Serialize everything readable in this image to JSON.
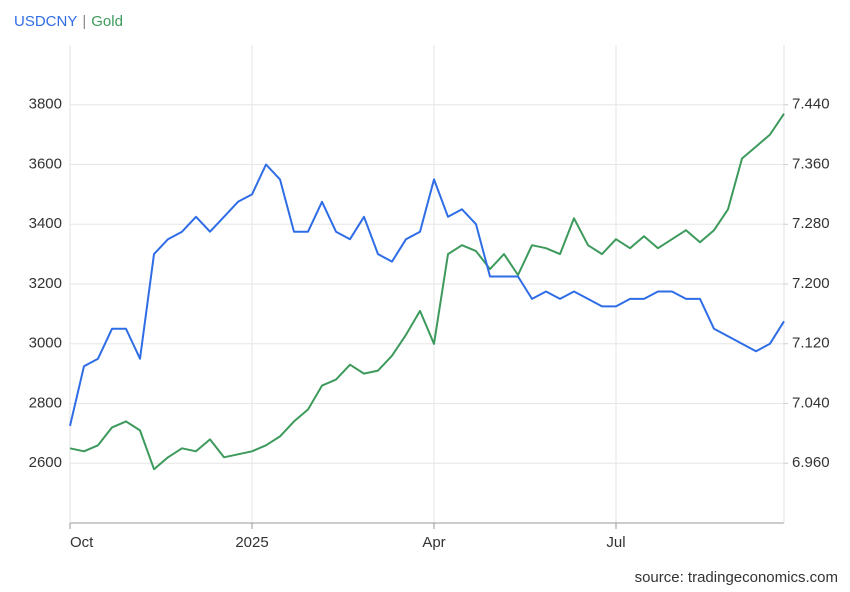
{
  "chart_data": {
    "type": "line",
    "categories": [
      "Oct",
      null,
      null,
      null,
      null,
      null,
      null,
      null,
      null,
      null,
      null,
      null,
      null,
      "2025",
      null,
      null,
      null,
      null,
      null,
      null,
      null,
      null,
      null,
      null,
      null,
      null,
      "Apr",
      null,
      null,
      null,
      null,
      null,
      null,
      null,
      null,
      null,
      null,
      null,
      null,
      "Jul",
      null,
      null,
      null,
      null,
      null,
      null,
      null,
      null,
      null,
      null,
      null,
      null
    ],
    "series": [
      {
        "name": "USDCNY",
        "color": "#2f6de6",
        "axis": "y2",
        "values": [
          7.01,
          7.09,
          7.1,
          7.14,
          7.14,
          7.1,
          7.24,
          7.26,
          7.27,
          7.29,
          7.27,
          7.29,
          7.31,
          7.32,
          7.36,
          7.34,
          7.27,
          7.27,
          7.31,
          7.27,
          7.26,
          7.29,
          7.24,
          7.23,
          7.26,
          7.27,
          7.34,
          7.29,
          7.3,
          7.28,
          7.21,
          7.21,
          7.21,
          7.18,
          7.19,
          7.18,
          7.19,
          7.18,
          7.17,
          7.17,
          7.18,
          7.18,
          7.19,
          7.19,
          7.18,
          7.18,
          7.14,
          7.13,
          7.12,
          7.11,
          7.12,
          7.15
        ]
      },
      {
        "name": "Gold",
        "color": "#3d9a5c",
        "values": [
          2650,
          2640,
          2660,
          2720,
          2740,
          2710,
          2580,
          2620,
          2650,
          2640,
          2680,
          2620,
          2630,
          2640,
          2660,
          2690,
          2740,
          2780,
          2860,
          2880,
          2930,
          2900,
          2910,
          2960,
          3030,
          3110,
          3000,
          3300,
          3330,
          3310,
          3250,
          3300,
          3230,
          3330,
          3320,
          3300,
          3420,
          3330,
          3300,
          3350,
          3320,
          3360,
          3320,
          3350,
          3380,
          3340,
          3380,
          3450,
          3620,
          3660,
          3700,
          3770
        ]
      }
    ],
    "ylim": [
      2400,
      4000
    ],
    "yticks": [
      2600,
      2800,
      3000,
      3200,
      3400,
      3600,
      3800
    ],
    "y2lim": [
      6.88,
      7.52
    ],
    "y2ticks": [
      {
        "value": 6.96,
        "label": "6.960"
      },
      {
        "value": 7.04,
        "label": "7.040"
      },
      {
        "value": 7.12,
        "label": "7.120"
      },
      {
        "value": 7.2,
        "label": "7.200"
      },
      {
        "value": 7.28,
        "label": "7.280"
      },
      {
        "value": 7.36,
        "label": "7.360"
      },
      {
        "value": 7.44,
        "label": "7.440"
      }
    ],
    "grid": true,
    "source": "source: tradingeconomics.com"
  }
}
